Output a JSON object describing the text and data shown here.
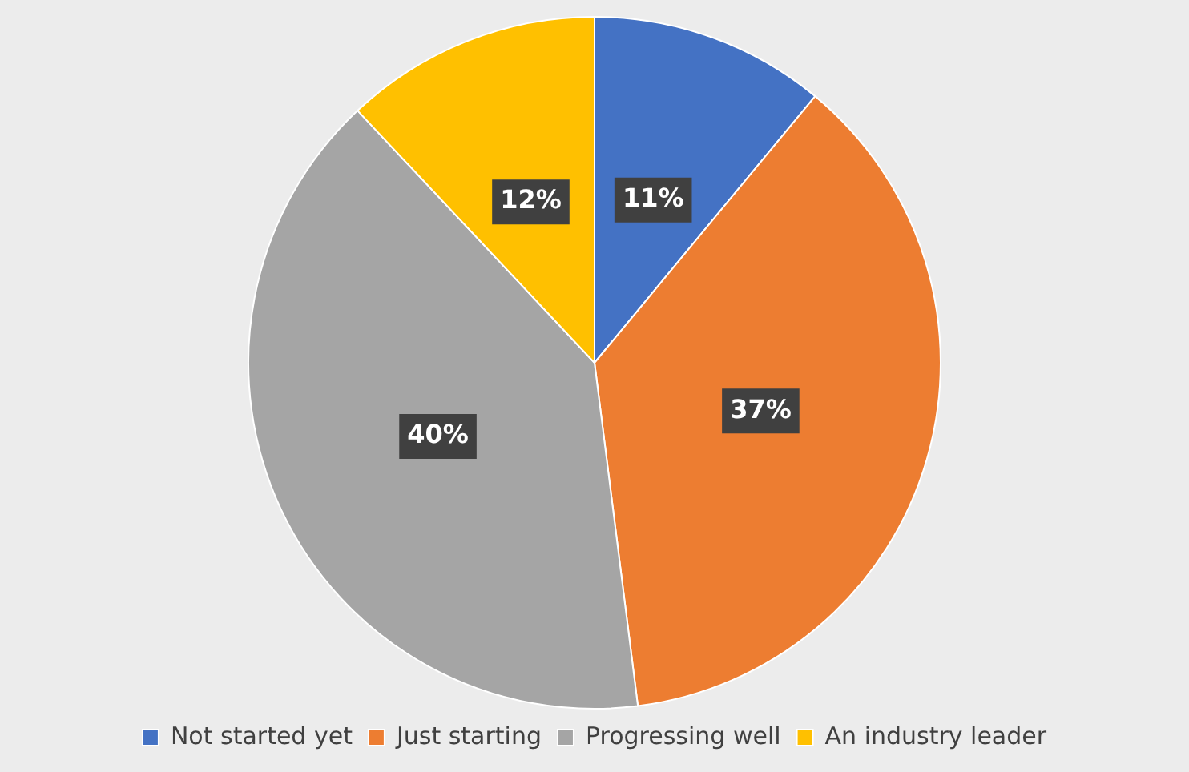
{
  "chart_data": {
    "type": "pie",
    "categories": [
      "Not started yet",
      "Just starting",
      "Progressing well",
      "An industry leader"
    ],
    "values": [
      11,
      37,
      40,
      12
    ],
    "colors": [
      "#4472c4",
      "#ed7d31",
      "#a5a5a5",
      "#ffc000"
    ],
    "value_labels": [
      "11%",
      "37%",
      "40%",
      "12%"
    ],
    "legend": "bottom"
  }
}
